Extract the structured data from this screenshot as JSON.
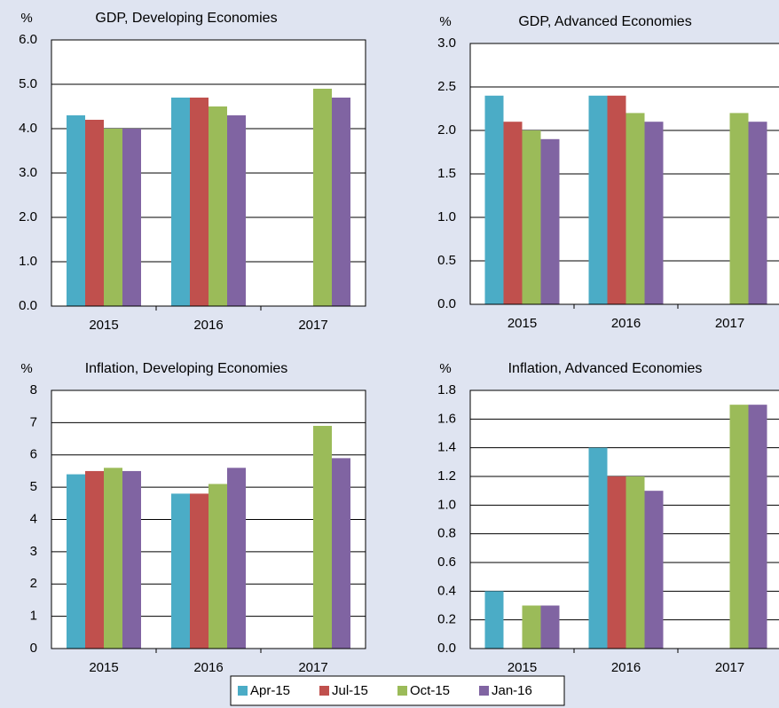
{
  "legend": [
    {
      "name": "Apr-15",
      "color": "#4bacc6"
    },
    {
      "name": "Jul-15",
      "color": "#c0504d"
    },
    {
      "name": "Oct-15",
      "color": "#9bbb59"
    },
    {
      "name": "Jan-16",
      "color": "#8064a2"
    }
  ],
  "chart_data": [
    {
      "type": "bar",
      "title": "GDP, Developing Economies",
      "y_label": "%",
      "categories": [
        "2015",
        "2016",
        "2017"
      ],
      "series": [
        {
          "values": [
            4.3,
            4.7,
            null
          ]
        },
        {
          "values": [
            4.2,
            4.7,
            null
          ]
        },
        {
          "values": [
            4.0,
            4.5,
            4.9
          ]
        },
        {
          "values": [
            4.0,
            4.3,
            4.7
          ]
        }
      ],
      "ylim": [
        0,
        6
      ],
      "yticks": [
        {
          "value": 0,
          "label": "0.0"
        },
        {
          "value": 1,
          "label": "1.0"
        },
        {
          "value": 2,
          "label": "2.0"
        },
        {
          "value": 3,
          "label": "3.0"
        },
        {
          "value": 4,
          "label": "4.0"
        },
        {
          "value": 5,
          "label": "5.0"
        },
        {
          "value": 6,
          "label": "6.0"
        }
      ],
      "grid": true
    },
    {
      "type": "bar",
      "title": "GDP, Advanced Economies",
      "y_label": "%",
      "categories": [
        "2015",
        "2016",
        "2017"
      ],
      "series": [
        {
          "values": [
            2.4,
            2.4,
            null
          ]
        },
        {
          "values": [
            2.1,
            2.4,
            null
          ]
        },
        {
          "values": [
            2.0,
            2.2,
            2.2
          ]
        },
        {
          "values": [
            1.9,
            2.1,
            2.1
          ]
        }
      ],
      "ylim": [
        0,
        3
      ],
      "yticks": [
        {
          "value": 0,
          "label": "0.0"
        },
        0.5,
        {
          "value": 1,
          "label": "1.0"
        },
        1.5,
        {
          "value": 2,
          "label": "2.0"
        },
        2.5,
        {
          "value": 3,
          "label": "3.0"
        }
      ],
      "grid": true
    },
    {
      "type": "bar",
      "title": "Inflation, Developing Economies",
      "y_label": "%",
      "categories": [
        "2015",
        "2016",
        "2017"
      ],
      "series": [
        {
          "values": [
            5.4,
            4.8,
            null
          ]
        },
        {
          "values": [
            5.5,
            4.8,
            null
          ]
        },
        {
          "values": [
            5.6,
            5.1,
            6.9
          ]
        },
        {
          "values": [
            5.5,
            5.6,
            5.9
          ]
        }
      ],
      "ylim": [
        0,
        8
      ],
      "yticks": [
        0,
        1,
        2,
        3,
        4,
        5,
        6,
        7,
        8
      ],
      "grid": true
    },
    {
      "type": "bar",
      "title": "Inflation, Advanced Economies",
      "y_label": "%",
      "categories": [
        "2015",
        "2016",
        "2017"
      ],
      "series": [
        {
          "values": [
            0.4,
            1.4,
            null
          ]
        },
        {
          "values": [
            null,
            1.2,
            null
          ]
        },
        {
          "values": [
            0.3,
            1.2,
            1.7
          ]
        },
        {
          "values": [
            0.3,
            1.1,
            1.7
          ]
        }
      ],
      "ylim": [
        0,
        1.8
      ],
      "yticks": [
        {
          "value": 0,
          "label": "0.0"
        },
        0.2,
        0.4,
        0.6,
        0.8,
        {
          "value": 1,
          "label": "1.0"
        },
        1.2,
        1.4,
        1.6,
        1.8
      ],
      "grid": true
    }
  ]
}
